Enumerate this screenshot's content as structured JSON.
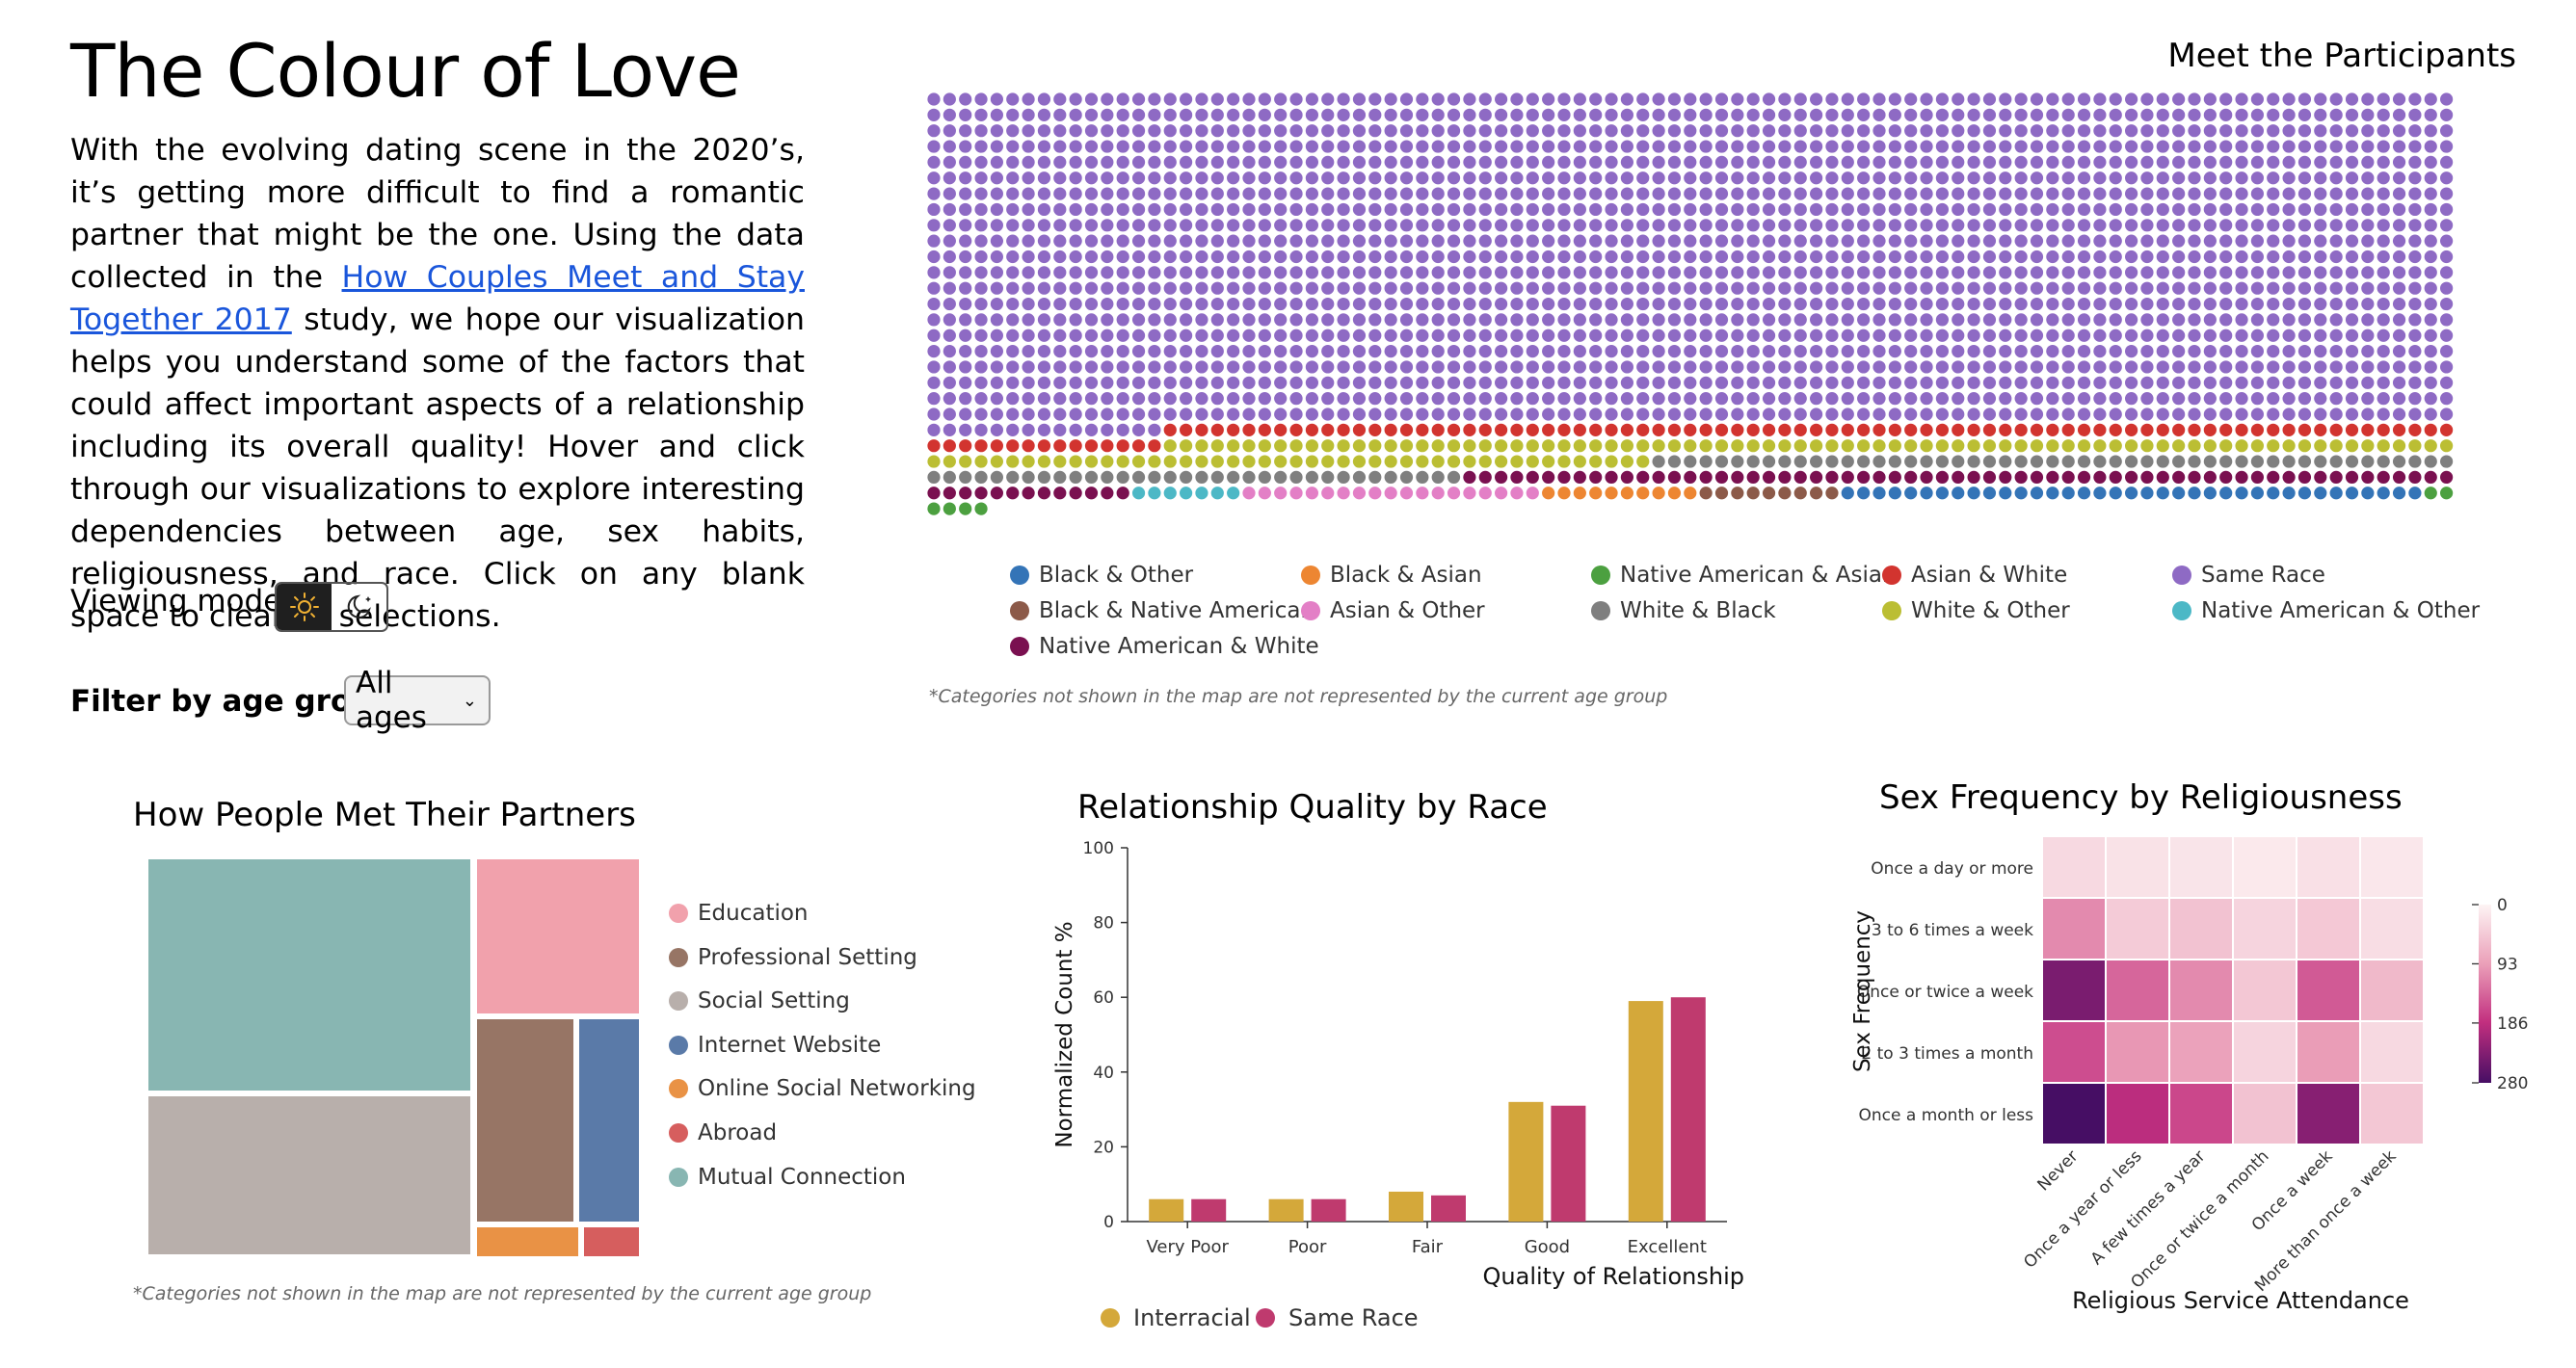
{
  "page": {
    "title": "The Colour of Love",
    "intro_before_link": "With the evolving dating scene in the 2020’s, it’s getting more difficult to find a romantic partner that might be the one. Using the data collected in the ",
    "intro_link": "How Couples Meet and Stay Together 2017",
    "intro_after_link": " study, we hope our visualization helps you understand some of the factors that could affect important aspects of a relationship including its overall quality! Hover and click through our visualizations to explore interesting dependencies between age, sex habits, religiousness, and race. Click on any blank space to clear all selections."
  },
  "controls": {
    "viewing_mode_label": "Viewing mode:",
    "viewing_mode_selected": "light",
    "filter_label": "Filter by age group:",
    "filter_value": "All ages"
  },
  "participants": {
    "title": "Meet the Participants",
    "note": "*Categories not shown in the map are not represented by the current age group",
    "legend": [
      {
        "label": "Black & Other",
        "color": "#3474b7"
      },
      {
        "label": "Black & Asian",
        "color": "#ed8632"
      },
      {
        "label": "Native American & Asian",
        "color": "#4ca040"
      },
      {
        "label": "Asian & White",
        "color": "#d2342f"
      },
      {
        "label": "Same Race",
        "color": "#8e6ac4"
      },
      {
        "label": "Black & Native American",
        "color": "#8c5a49"
      },
      {
        "label": "Asian & Other",
        "color": "#e37fc6"
      },
      {
        "label": "White & Black",
        "color": "#7f7f7f"
      },
      {
        "label": "White & Other",
        "color": "#bbbe33"
      },
      {
        "label": "Native American & Other",
        "color": "#4cb8c6"
      },
      {
        "label": "Native American & White",
        "color": "#7a1050"
      }
    ]
  },
  "treemap": {
    "title": "How People Met Their Partners",
    "note": "*Categories not shown in the map are not represented by the current age group",
    "legend": [
      {
        "label": "Education",
        "color": "#f1a1ac"
      },
      {
        "label": "Professional Setting",
        "color": "#977565"
      },
      {
        "label": "Social Setting",
        "color": "#b8afab"
      },
      {
        "label": "Internet Website",
        "color": "#5a7aa8"
      },
      {
        "label": "Online Social Networking",
        "color": "#e99245"
      },
      {
        "label": "Abroad",
        "color": "#d65e5e"
      },
      {
        "label": "Mutual Connection",
        "color": "#88b6b2"
      }
    ]
  },
  "chart_data": [
    {
      "type": "bar",
      "title": "Relationship Quality by Race",
      "xlabel": "Quality of Relationship",
      "ylabel": "Normalized Count %",
      "ylim": [
        0,
        100
      ],
      "yticks": [
        0,
        20,
        40,
        60,
        80,
        100
      ],
      "categories": [
        "Very Poor",
        "Poor",
        "Fair",
        "Good",
        "Excellent"
      ],
      "series": [
        {
          "name": "Interracial",
          "color": "#d4a83a",
          "values": [
            6,
            6,
            8,
            32,
            59
          ]
        },
        {
          "name": "Same Race",
          "color": "#bf3a6e",
          "values": [
            6,
            6,
            7,
            31,
            60
          ]
        }
      ],
      "legend_position": "bottom"
    },
    {
      "type": "heatmap",
      "title": "Sex Frequency by Religiousness",
      "xlabel": "Religious Service Attendance",
      "ylabel": "Sex Frequency",
      "x": [
        "Never",
        "Once a year or less",
        "A few times a year",
        "Once or twice a month",
        "Once a week",
        "More than once a week"
      ],
      "y": [
        "Once a day or more",
        "3 to 6 times a week",
        "Once or twice a week",
        "2 to 3 times a month",
        "Once a month or less"
      ],
      "values": [
        [
          30,
          20,
          18,
          12,
          22,
          14
        ],
        [
          110,
          45,
          55,
          35,
          48,
          25
        ],
        [
          240,
          140,
          110,
          50,
          150,
          65
        ],
        [
          160,
          100,
          90,
          35,
          95,
          30
        ],
        [
          280,
          190,
          165,
          55,
          230,
          50
        ]
      ],
      "scale_ticks": [
        0,
        93,
        186,
        280
      ]
    }
  ]
}
